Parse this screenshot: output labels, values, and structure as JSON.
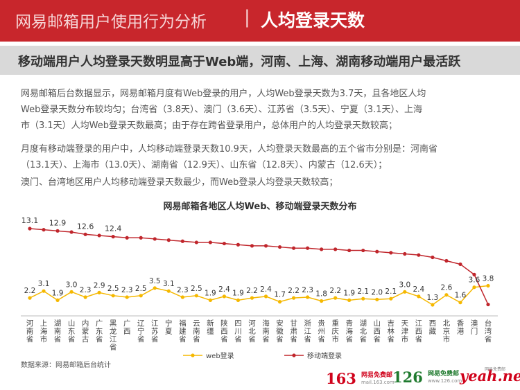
{
  "header": {
    "title": "网易邮箱用户使用行为分析",
    "separator": "|",
    "topic": "人均登录天数"
  },
  "subtitle": "移动端用户人均登录天数明显高于Web端，河南、上海、湖南移动端用户最活跃",
  "paragraphs": [
    "网易邮箱后台数据显示，网易邮箱月度有Web登录的用户，人均Web登录天数为3.7天，且各地区人均",
    "Web登录天数分布较均匀；台湾省（3.8天）、澳门（3.6天）、江苏省（3.5天）、宁夏（3.1天）、上海",
    "市（3.1天）人均Web登录天数最高；由于存在跨省登录用户，总体用户的人均登录天数较高；",
    "月度有移动端登录的用户中，人均移动端登录天数10.9天，人均登录天数最高的五个省市分别是：河南省",
    "（13.1天）、上海市（13.0天）、湖南省（12.9天）、山东省（12.8天）、内蒙古（12.6天）；",
    "澳门、台湾地区用户人均移动端登录天数最少，而Web登录人均登录天数较高；"
  ],
  "chart_data": {
    "type": "line",
    "title": "网易邮箱各地区人均Web、移动端登录天数分布",
    "categories": [
      "河南省",
      "上海市",
      "湖南省",
      "山东省",
      "内蒙古",
      "广东省",
      "黑龙江省",
      "广西",
      "辽宁省",
      "江苏省",
      "宁夏",
      "福建省",
      "云南省",
      "新疆",
      "陕西省",
      "四川省",
      "河北省",
      "海南省",
      "安徽省",
      "甘肃省",
      "浙江省",
      "贵州省",
      "重庆市",
      "青海省",
      "湖北省",
      "山西省",
      "吉林省",
      "天津市",
      "江西省",
      "西藏",
      "北京市",
      "香港",
      "澳门",
      "台湾省"
    ],
    "series": [
      {
        "name": "web登录",
        "color": "#f5b800",
        "values": [
          2.2,
          3.1,
          1.9,
          3.0,
          2.3,
          2.9,
          2.5,
          2.3,
          2.5,
          3.5,
          3.1,
          2.3,
          2.5,
          1.9,
          2.4,
          1.9,
          2.2,
          2.4,
          1.7,
          2.2,
          2.3,
          1.8,
          2.2,
          1.9,
          2.1,
          2.0,
          2.1,
          3.0,
          2.4,
          1.3,
          2.6,
          1.6,
          3.6,
          3.8
        ]
      },
      {
        "name": "移动端登录",
        "color": "#c0262c",
        "values": [
          13.1,
          13.0,
          12.9,
          12.8,
          12.6,
          12.5,
          12.4,
          12.3,
          12.3,
          12.2,
          12.1,
          12.0,
          11.9,
          11.9,
          11.8,
          11.7,
          11.6,
          11.6,
          11.5,
          11.4,
          11.4,
          11.3,
          11.3,
          11.2,
          11.2,
          11.1,
          11.0,
          10.9,
          10.8,
          10.6,
          10.3,
          10.0,
          9.1,
          6.5
        ]
      }
    ],
    "mobile_labels": [
      {
        "index": 0,
        "text": "13.1"
      },
      {
        "index": 2,
        "text": "12.9"
      },
      {
        "index": 4,
        "text": "12.6"
      },
      {
        "index": 6,
        "text": "12.4"
      }
    ],
    "grid": false,
    "legend_position": "bottom"
  },
  "source": "数据来源：网易邮箱后台统计",
  "logos": {
    "l163": {
      "num": "163",
      "name": "网易免费邮",
      "url": "mail.163.com"
    },
    "l126": {
      "num": "126",
      "name": "网易免费邮",
      "url": "www.126.com"
    },
    "lyeah": {
      "text": "yeah.net",
      "small": "网易免费邮"
    }
  }
}
